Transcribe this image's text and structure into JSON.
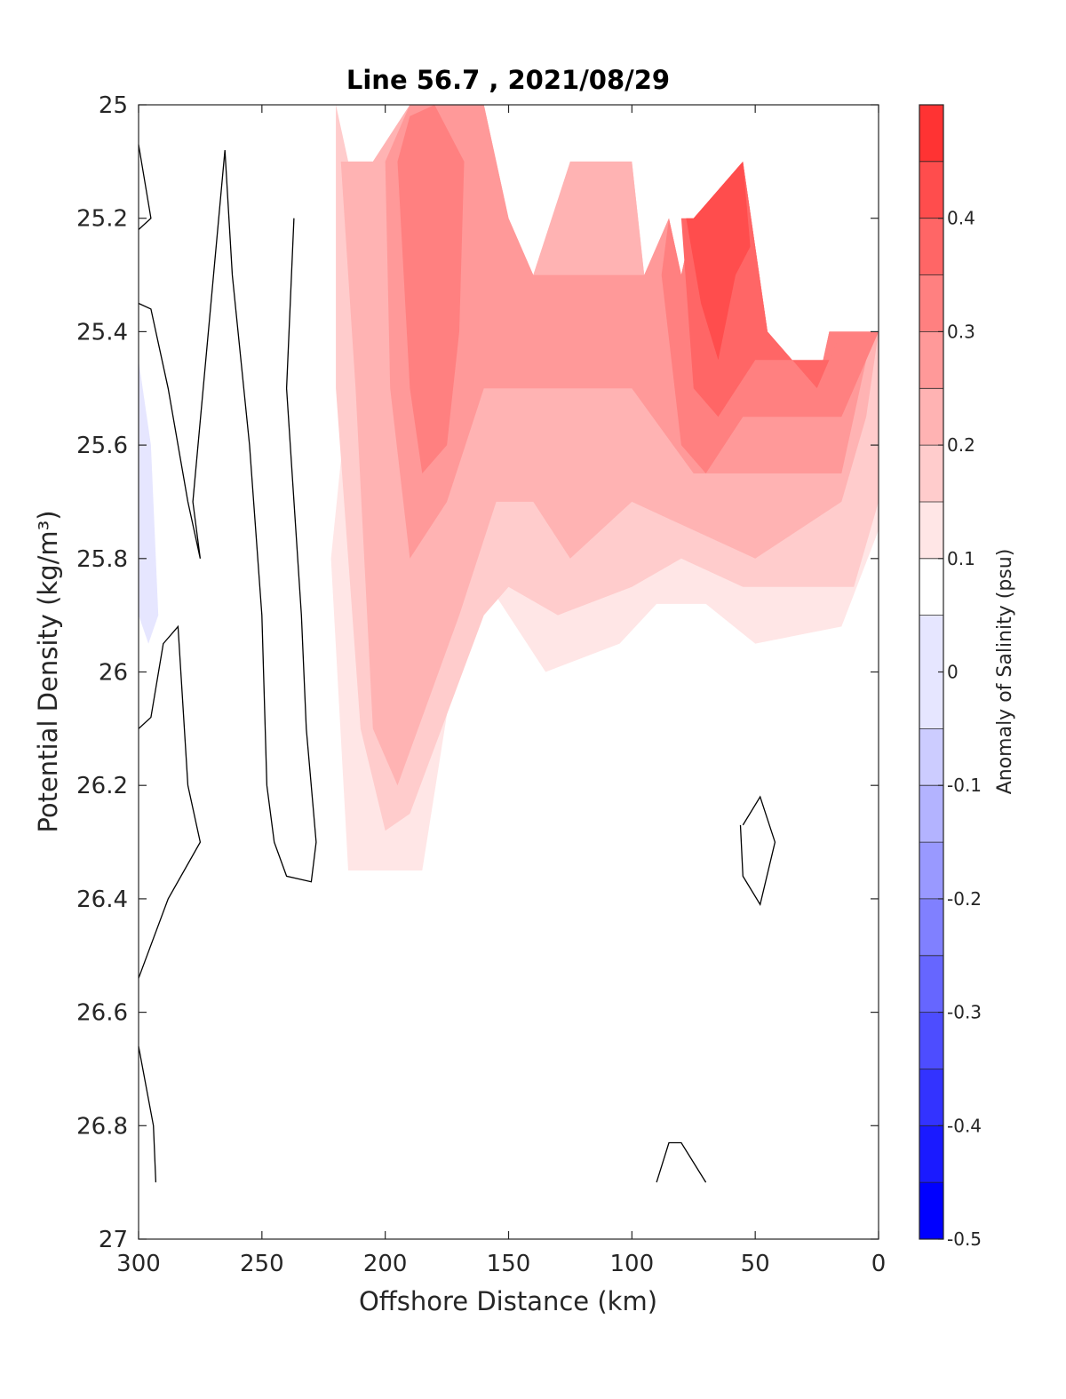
{
  "chart_data": {
    "type": "heatmap",
    "subtype": "filled-contour",
    "title": "Line 56.7 , 2021/08/29",
    "xlabel": "Offshore Distance (km)",
    "ylabel": "Potential Density (kg/m³)",
    "colorbar_label": "Anomaly of Salinity (psu)",
    "xlim": [
      300,
      0
    ],
    "ylim": [
      25,
      27
    ],
    "x_reversed": true,
    "y_reversed": true,
    "x_ticks": [
      300,
      250,
      200,
      150,
      100,
      50,
      0
    ],
    "y_ticks": [
      25,
      25.2,
      25.4,
      25.6,
      25.8,
      26,
      26.2,
      26.4,
      26.6,
      26.8,
      27
    ],
    "colorbar": {
      "range": [
        -0.5,
        0.5
      ],
      "levels": [
        -0.5,
        -0.45,
        -0.4,
        -0.35,
        -0.3,
        -0.25,
        -0.2,
        -0.15,
        -0.1,
        -0.05,
        0.05,
        0.1,
        0.15,
        0.2,
        0.25,
        0.3,
        0.35,
        0.4,
        0.45,
        0.5
      ],
      "ticks": [
        0.4,
        0.3,
        0.2,
        0.1,
        0,
        -0.1,
        -0.2,
        -0.3,
        -0.4,
        -0.5
      ],
      "tick_labels": [
        "0.4",
        "0.3",
        "0.2",
        "0.1",
        "0",
        "-0.1",
        "-0.2",
        "-0.3",
        "-0.4",
        "-0.5"
      ],
      "colors": [
        "#0000ff",
        "#1a1aff",
        "#3333ff",
        "#4d4dff",
        "#6666ff",
        "#8080ff",
        "#9999ff",
        "#b3b3ff",
        "#ccccff",
        "#e6e6ff",
        "#ffffff",
        "#ffe6e6",
        "#ffcccc",
        "#ffb3b3",
        "#ff9999",
        "#ff8080",
        "#ff6666",
        "#ff4d4d",
        "#ff3333",
        "#ff0000"
      ]
    },
    "colormap": "blue-white-red",
    "zero_contour_lines": true,
    "regions": [
      {
        "level": 0.05,
        "points": [
          [
            228,
            25
          ],
          [
            222,
            25.6
          ],
          [
            232,
            26.4
          ],
          [
            215,
            26.9
          ],
          [
            170,
            26.9
          ],
          [
            150,
            26.1
          ],
          [
            100,
            26.15
          ],
          [
            70,
            26.05
          ],
          [
            50,
            26
          ],
          [
            15,
            26.13
          ],
          [
            0,
            25.85
          ],
          [
            0,
            25.4
          ],
          [
            20,
            25.4
          ],
          [
            25,
            25.5
          ],
          [
            45,
            25.4
          ],
          [
            55,
            25.1
          ],
          [
            75,
            25.2
          ],
          [
            80,
            25.3
          ],
          [
            85,
            25.2
          ],
          [
            95,
            25.3
          ],
          [
            100,
            25.1
          ],
          [
            125,
            25.1
          ],
          [
            140,
            25.3
          ],
          [
            150,
            25.2
          ],
          [
            160,
            25
          ],
          [
            190,
            25
          ],
          [
            205,
            25.1
          ],
          [
            215,
            25.1
          ],
          [
            220,
            25
          ]
        ]
      },
      {
        "level": 0.05,
        "points": [
          [
            300,
            25
          ],
          [
            295,
            25.1
          ],
          [
            290,
            25.3
          ],
          [
            288,
            25.25
          ],
          [
            280,
            25.1
          ],
          [
            275,
            25
          ]
        ]
      },
      {
        "level": 0.1,
        "points": [
          [
            220,
            25
          ],
          [
            215,
            25.5
          ],
          [
            222,
            25.8
          ],
          [
            215,
            26.35
          ],
          [
            185,
            26.35
          ],
          [
            165,
            25.8
          ],
          [
            150,
            25.9
          ],
          [
            135,
            26
          ],
          [
            105,
            25.95
          ],
          [
            90,
            25.88
          ],
          [
            70,
            25.88
          ],
          [
            50,
            25.95
          ],
          [
            15,
            25.92
          ],
          [
            0,
            25.75
          ],
          [
            0,
            25.4
          ],
          [
            20,
            25.4
          ],
          [
            25,
            25.5
          ],
          [
            45,
            25.4
          ],
          [
            55,
            25.1
          ],
          [
            75,
            25.2
          ],
          [
            80,
            25.3
          ],
          [
            85,
            25.2
          ],
          [
            95,
            25.3
          ],
          [
            100,
            25.1
          ],
          [
            125,
            25.1
          ],
          [
            140,
            25.3
          ],
          [
            150,
            25.2
          ],
          [
            160,
            25
          ],
          [
            190,
            25
          ],
          [
            205,
            25.1
          ],
          [
            215,
            25.1
          ]
        ]
      },
      {
        "level": 0.15,
        "points": [
          [
            220,
            25
          ],
          [
            220,
            25.5
          ],
          [
            210,
            26.1
          ],
          [
            200,
            26.28
          ],
          [
            190,
            26.25
          ],
          [
            160,
            25.9
          ],
          [
            150,
            25.85
          ],
          [
            130,
            25.9
          ],
          [
            100,
            25.85
          ],
          [
            80,
            25.8
          ],
          [
            55,
            25.85
          ],
          [
            10,
            25.85
          ],
          [
            0,
            25.7
          ],
          [
            0,
            25.4
          ],
          [
            20,
            25.4
          ],
          [
            25,
            25.5
          ],
          [
            45,
            25.4
          ],
          [
            55,
            25.1
          ],
          [
            75,
            25.2
          ],
          [
            80,
            25.3
          ],
          [
            85,
            25.2
          ],
          [
            95,
            25.3
          ],
          [
            100,
            25.1
          ],
          [
            125,
            25.1
          ],
          [
            140,
            25.3
          ],
          [
            150,
            25.2
          ],
          [
            160,
            25
          ],
          [
            190,
            25
          ],
          [
            205,
            25.1
          ],
          [
            215,
            25.1
          ]
        ]
      },
      {
        "level": 0.2,
        "points": [
          [
            218,
            25.1
          ],
          [
            212,
            25.5
          ],
          [
            205,
            26.1
          ],
          [
            195,
            26.2
          ],
          [
            170,
            25.9
          ],
          [
            155,
            25.7
          ],
          [
            140,
            25.7
          ],
          [
            125,
            25.8
          ],
          [
            100,
            25.7
          ],
          [
            75,
            25.75
          ],
          [
            50,
            25.8
          ],
          [
            15,
            25.7
          ],
          [
            5,
            25.55
          ],
          [
            0,
            25.4
          ],
          [
            20,
            25.4
          ],
          [
            25,
            25.5
          ],
          [
            45,
            25.4
          ],
          [
            55,
            25.1
          ],
          [
            75,
            25.2
          ],
          [
            80,
            25.3
          ],
          [
            85,
            25.2
          ],
          [
            95,
            25.3
          ],
          [
            100,
            25.1
          ],
          [
            125,
            25.1
          ],
          [
            140,
            25.3
          ],
          [
            150,
            25.2
          ],
          [
            160,
            25
          ],
          [
            190,
            25
          ],
          [
            205,
            25.1
          ]
        ]
      },
      {
        "level": 0.25,
        "points": [
          [
            200,
            25.1
          ],
          [
            198,
            25.5
          ],
          [
            190,
            25.8
          ],
          [
            175,
            25.7
          ],
          [
            160,
            25.5
          ],
          [
            150,
            25.5
          ],
          [
            100,
            25.5
          ],
          [
            75,
            25.65
          ],
          [
            50,
            25.65
          ],
          [
            15,
            25.65
          ],
          [
            5,
            25.45
          ],
          [
            0,
            25.4
          ],
          [
            20,
            25.4
          ],
          [
            25,
            25.5
          ],
          [
            45,
            25.4
          ],
          [
            55,
            25.1
          ],
          [
            75,
            25.2
          ],
          [
            80,
            25.3
          ],
          [
            85,
            25.2
          ],
          [
            95,
            25.3
          ],
          [
            100,
            25.3
          ],
          [
            125,
            25.3
          ],
          [
            140,
            25.3
          ],
          [
            150,
            25.2
          ],
          [
            160,
            25
          ],
          [
            190,
            25
          ]
        ]
      },
      {
        "level": 0.3,
        "points": [
          [
            195,
            25.1
          ],
          [
            190,
            25.5
          ],
          [
            185,
            25.65
          ],
          [
            175,
            25.6
          ],
          [
            170,
            25.4
          ],
          [
            168,
            25.1
          ],
          [
            180,
            25.0
          ],
          [
            190,
            25.02
          ]
        ]
      },
      {
        "level": 0.3,
        "points": [
          [
            88,
            25.3
          ],
          [
            80,
            25.6
          ],
          [
            70,
            25.65
          ],
          [
            55,
            25.55
          ],
          [
            40,
            25.55
          ],
          [
            15,
            25.55
          ],
          [
            5,
            25.45
          ],
          [
            0,
            25.4
          ],
          [
            20,
            25.4
          ],
          [
            25,
            25.5
          ],
          [
            45,
            25.4
          ],
          [
            55,
            25.1
          ],
          [
            75,
            25.2
          ],
          [
            80,
            25.3
          ],
          [
            85,
            25.2
          ]
        ]
      },
      {
        "level": 0.35,
        "points": [
          [
            80,
            25.2
          ],
          [
            75,
            25.5
          ],
          [
            65,
            25.55
          ],
          [
            50,
            25.45
          ],
          [
            35,
            25.45
          ],
          [
            20,
            25.45
          ],
          [
            15,
            25.4
          ],
          [
            25,
            25.5
          ],
          [
            45,
            25.4
          ],
          [
            55,
            25.1
          ],
          [
            75,
            25.2
          ]
        ]
      },
      {
        "level": 0.4,
        "points": [
          [
            78,
            25.2
          ],
          [
            72,
            25.35
          ],
          [
            65,
            25.45
          ],
          [
            58,
            25.3
          ],
          [
            52,
            25.25
          ],
          [
            55,
            25.1
          ],
          [
            75,
            25.2
          ]
        ]
      },
      {
        "level": -0.05,
        "points": [
          [
            300,
            25.45
          ],
          [
            295,
            25.6
          ],
          [
            292,
            25.9
          ],
          [
            296,
            25.95
          ],
          [
            300,
            25.9
          ]
        ]
      }
    ],
    "zero_contours": [
      [
        [
          300,
          25.07
        ],
        [
          295,
          25.2
        ],
        [
          300,
          25.22
        ]
      ],
      [
        [
          300,
          25.35
        ],
        [
          295,
          25.36
        ],
        [
          288,
          25.5
        ],
        [
          280,
          25.7
        ],
        [
          275,
          25.8
        ],
        [
          278,
          25.7
        ],
        [
          265,
          25.08
        ],
        [
          262,
          25.3
        ],
        [
          255,
          25.6
        ],
        [
          250,
          25.9
        ],
        [
          248,
          26.2
        ],
        [
          245,
          26.3
        ],
        [
          240,
          26.36
        ],
        [
          230,
          26.37
        ],
        [
          228,
          26.3
        ],
        [
          232,
          26.1
        ],
        [
          234,
          25.9
        ],
        [
          240,
          25.5
        ],
        [
          237,
          25.2
        ]
      ],
      [
        [
          300,
          26.1
        ],
        [
          295,
          26.08
        ],
        [
          290,
          25.95
        ],
        [
          284,
          25.92
        ],
        [
          280,
          26.2
        ],
        [
          275,
          26.3
        ],
        [
          288,
          26.4
        ],
        [
          300,
          26.54
        ]
      ],
      [
        [
          300,
          26.66
        ],
        [
          294,
          26.8
        ],
        [
          293,
          26.9
        ]
      ],
      [
        [
          55,
          26.27
        ],
        [
          48,
          26.22
        ],
        [
          42,
          26.3
        ],
        [
          48,
          26.41
        ],
        [
          55,
          26.36
        ],
        [
          56,
          26.27
        ]
      ],
      [
        [
          90,
          26.9
        ],
        [
          85,
          26.83
        ],
        [
          80,
          26.83
        ],
        [
          70,
          26.9
        ]
      ]
    ]
  }
}
